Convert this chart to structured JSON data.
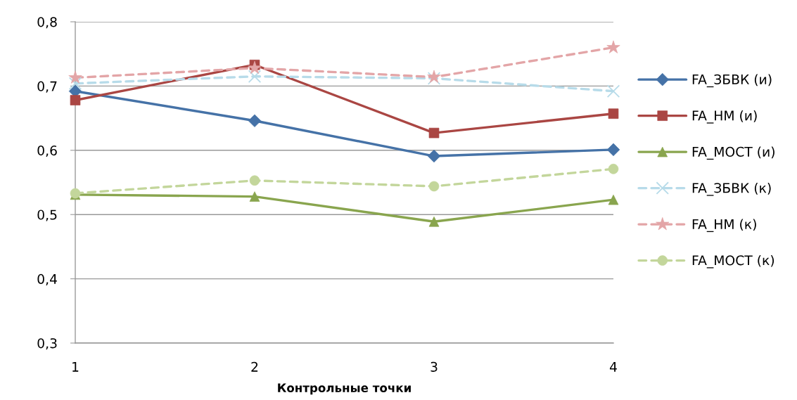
{
  "chart_data": {
    "type": "line",
    "xlabel": "Контрольные точки",
    "x": [
      1,
      2,
      3,
      4
    ],
    "xlim": [
      1,
      4
    ],
    "xticks": [
      1,
      2,
      3,
      4
    ],
    "ylim": [
      0.3,
      0.8
    ],
    "yticks": [
      {
        "value": 0.3,
        "label": "0,3"
      },
      {
        "value": 0.4,
        "label": "0,4"
      },
      {
        "value": 0.5,
        "label": "0,5"
      },
      {
        "value": 0.6,
        "label": "0,6"
      },
      {
        "value": 0.7,
        "label": "0,7"
      },
      {
        "value": 0.8,
        "label": "0,8"
      }
    ],
    "grid": "y",
    "legend": "right",
    "series": [
      {
        "name": "FA_ЗБВК (и)",
        "color": "#4572a7",
        "marker": "diamond",
        "line_style": "solid",
        "values": [
          0.692,
          0.646,
          0.591,
          0.601
        ]
      },
      {
        "name": "FA_НМ (и)",
        "color": "#aa4643",
        "marker": "square",
        "line_style": "solid",
        "values": [
          0.678,
          0.733,
          0.627,
          0.657
        ]
      },
      {
        "name": "FA_МОСТ (и)",
        "color": "#89a54e",
        "marker": "triangle",
        "line_style": "solid",
        "values": [
          0.531,
          0.528,
          0.489,
          0.523
        ]
      },
      {
        "name": "FA_ЗБВК (к)",
        "color": "#b7dbe9",
        "marker": "cross",
        "line_style": "dashed",
        "values": [
          0.704,
          0.715,
          0.712,
          0.692
        ]
      },
      {
        "name": "FA_НМ (к)",
        "color": "#e3a5a7",
        "marker": "star",
        "line_style": "dashed",
        "values": [
          0.713,
          0.728,
          0.714,
          0.76
        ]
      },
      {
        "name": "FA_МОСТ (к)",
        "color": "#c3d69b",
        "marker": "circle",
        "line_style": "dashed",
        "values": [
          0.533,
          0.553,
          0.544,
          0.571
        ]
      }
    ]
  }
}
